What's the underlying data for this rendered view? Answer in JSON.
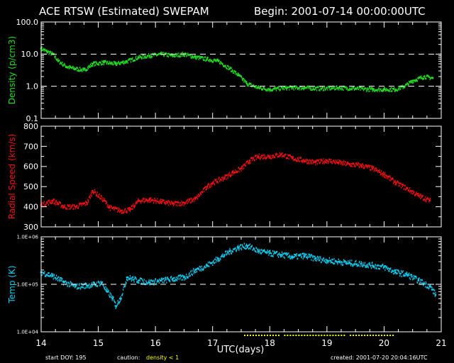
{
  "header": {
    "title": "ACE RTSW (Estimated) SWEPAM",
    "begin": "Begin: 2001-07-14 00:00:00UTC"
  },
  "footer": {
    "start_doy": "start DOY: 195",
    "caution_label": "caution:",
    "caution_value": "density < 1",
    "created": "created: 2001-07-20 20:04:16UTC"
  },
  "colors": {
    "density": "#22dd22",
    "speed": "#ee1111",
    "temp": "#11ccee",
    "caution": "#ffff00",
    "axes": "#ffffff"
  },
  "chart_data": [
    {
      "type": "scatter",
      "ylabel": "Density (p/cm3)",
      "yscale": "log",
      "ylim": [
        0.1,
        100.0
      ],
      "yticks": [
        "100.0",
        "10.0",
        "1.0",
        "0.1"
      ],
      "reference_lines": [
        10.0,
        1.0
      ],
      "x": [
        14.0,
        14.1,
        14.2,
        14.3,
        14.45,
        14.6,
        14.75,
        14.9,
        15.1,
        15.3,
        15.5,
        15.7,
        15.9,
        16.1,
        16.3,
        16.5,
        16.7,
        16.9,
        17.1,
        17.3,
        17.45,
        17.6,
        17.8,
        18.0,
        18.3,
        18.6,
        18.9,
        19.2,
        19.5,
        19.8,
        20.0,
        20.2,
        20.35,
        20.5,
        20.7,
        20.85
      ],
      "values": [
        15.0,
        12.0,
        10.0,
        6.0,
        4.0,
        3.5,
        3.2,
        5.0,
        5.5,
        5.0,
        6.0,
        8.0,
        9.0,
        10.0,
        9.0,
        10.0,
        8.0,
        7.0,
        6.0,
        3.5,
        2.2,
        1.2,
        0.9,
        0.8,
        0.9,
        0.9,
        0.85,
        0.9,
        0.85,
        0.8,
        0.8,
        0.8,
        1.0,
        1.5,
        2.0,
        1.8
      ]
    },
    {
      "type": "scatter",
      "ylabel": "Radial Speed (km/s)",
      "ylim": [
        300,
        800
      ],
      "yticks": [
        "800",
        "700",
        "600",
        "500",
        "400",
        "300"
      ],
      "x": [
        14.0,
        14.2,
        14.4,
        14.6,
        14.8,
        14.9,
        15.1,
        15.2,
        15.4,
        15.55,
        15.7,
        15.9,
        16.1,
        16.3,
        16.5,
        16.7,
        16.9,
        17.0,
        17.2,
        17.35,
        17.5,
        17.65,
        17.8,
        18.0,
        18.2,
        18.4,
        18.6,
        18.8,
        19.0,
        19.2,
        19.4,
        19.6,
        19.8,
        20.0,
        20.2,
        20.4,
        20.6,
        20.8
      ],
      "values": [
        410,
        430,
        400,
        400,
        420,
        480,
        430,
        395,
        380,
        385,
        430,
        435,
        425,
        415,
        420,
        440,
        500,
        520,
        545,
        570,
        590,
        630,
        650,
        650,
        660,
        640,
        630,
        620,
        630,
        620,
        610,
        605,
        590,
        560,
        520,
        490,
        455,
        430
      ]
    },
    {
      "type": "scatter",
      "ylabel": "Temp (K)",
      "yscale": "log",
      "ylim": [
        10000,
        1000000
      ],
      "yticks": [
        "1.0E+06",
        "1.0E+05",
        "1.0E+04"
      ],
      "reference_lines": [
        100000
      ],
      "x": [
        14.0,
        14.2,
        14.4,
        14.6,
        14.8,
        14.95,
        15.05,
        15.15,
        15.25,
        15.3,
        15.38,
        15.5,
        15.7,
        15.9,
        16.1,
        16.3,
        16.5,
        16.7,
        16.9,
        17.1,
        17.3,
        17.45,
        17.6,
        17.8,
        18.0,
        18.2,
        18.4,
        18.6,
        18.8,
        19.0,
        19.2,
        19.4,
        19.6,
        19.8,
        20.0,
        20.2,
        20.4,
        20.6,
        20.8,
        20.9
      ],
      "values": [
        180000,
        150000,
        110000,
        90000,
        95000,
        100000,
        110000,
        70000,
        50000,
        35000,
        50000,
        140000,
        120000,
        110000,
        120000,
        130000,
        140000,
        200000,
        250000,
        350000,
        500000,
        600000,
        650000,
        500000,
        450000,
        420000,
        380000,
        400000,
        350000,
        320000,
        300000,
        280000,
        270000,
        250000,
        230000,
        180000,
        160000,
        120000,
        90000,
        60000
      ]
    }
  ],
  "x_axis": {
    "xlabel": "UTC(days)",
    "xlim": [
      14,
      21
    ],
    "ticks": [
      "14",
      "15",
      "16",
      "17",
      "18",
      "19",
      "20",
      "21"
    ]
  },
  "caution_segments": [
    [
      17.55,
      18.15
    ],
    [
      18.25,
      19.3
    ],
    [
      19.4,
      20.15
    ]
  ]
}
